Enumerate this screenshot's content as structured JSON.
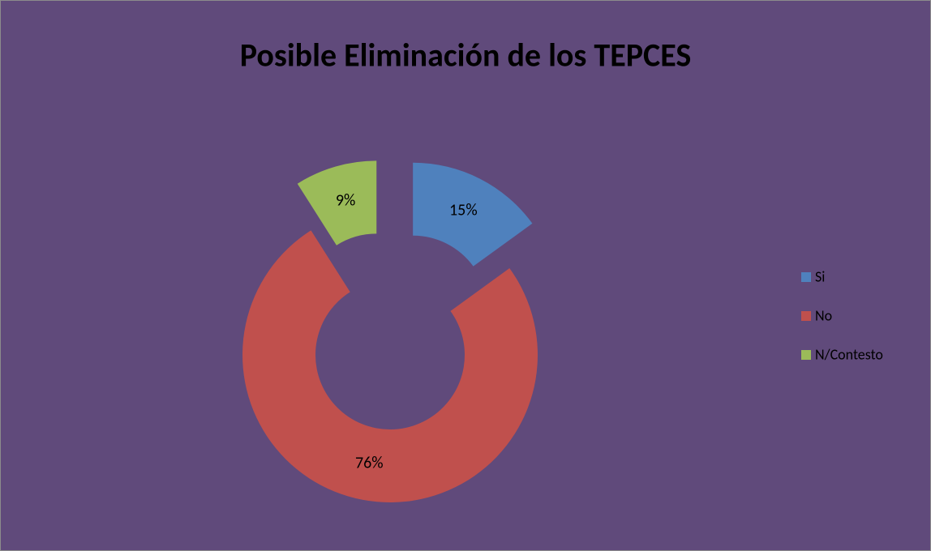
{
  "chart_data": {
    "type": "pie",
    "title": "Posible Eliminación de los TEPCES",
    "categories": [
      "Si",
      "No",
      "N/Contesto"
    ],
    "values": [
      15,
      76,
      9
    ],
    "value_labels": [
      "15%",
      "76%",
      "9%"
    ],
    "colors": [
      "#4f81bd",
      "#c0504d",
      "#9bbb59"
    ],
    "donut": true,
    "legend": "right"
  }
}
